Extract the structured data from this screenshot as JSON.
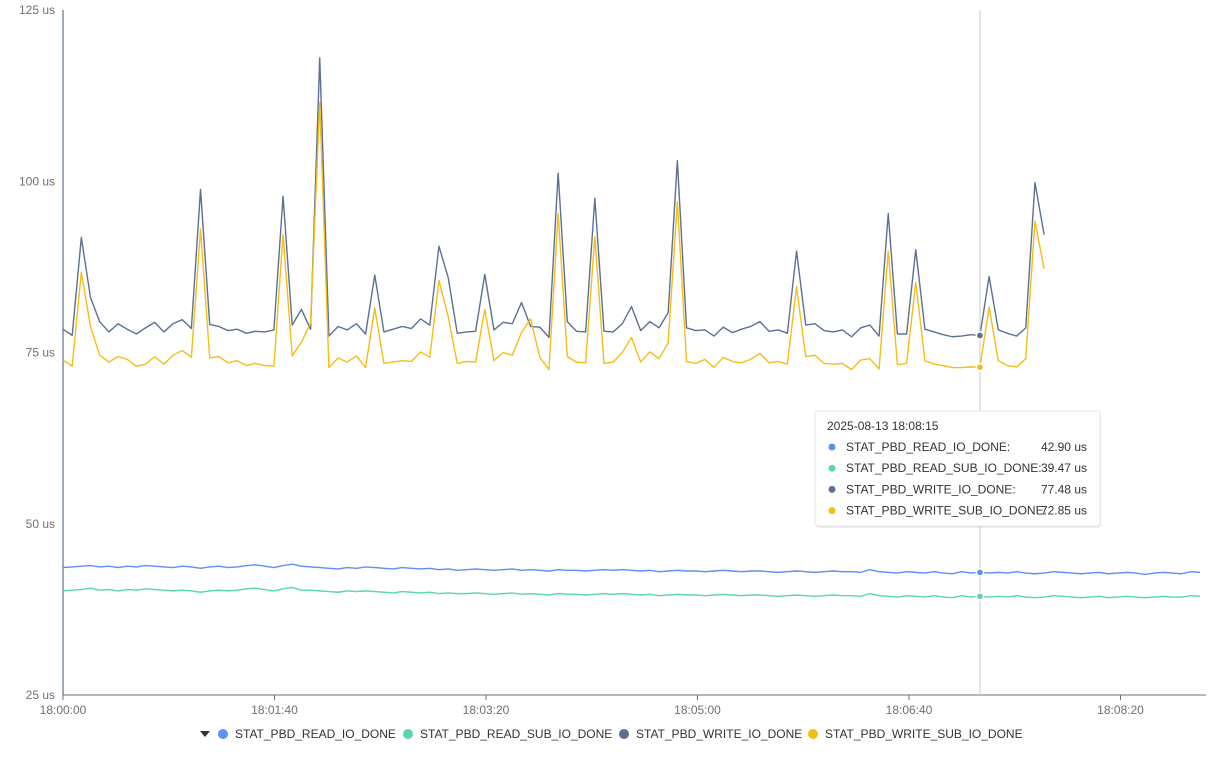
{
  "chart_data": {
    "type": "line",
    "x_ticks": [
      "18:00:00",
      "18:01:40",
      "18:03:20",
      "18:05:00",
      "18:06:40",
      "18:08:20"
    ],
    "y_ticks": [
      "25 us",
      "50 us",
      "75 us",
      "100 us",
      "125 us"
    ],
    "ylim": [
      25,
      125
    ],
    "grid": false,
    "legend_position": "bottom",
    "series": [
      {
        "name": "STAT_PBD_READ_IO_DONE",
        "color": "#5b8ff9",
        "values": [
          43.6,
          43.7,
          43.8,
          43.9,
          43.7,
          43.8,
          43.6,
          43.8,
          43.7,
          43.9,
          43.8,
          43.7,
          43.6,
          43.8,
          43.7,
          43.5,
          43.7,
          43.8,
          43.6,
          43.7,
          43.9,
          44.0,
          43.8,
          43.6,
          43.9,
          44.1,
          43.8,
          43.7,
          43.6,
          43.5,
          43.4,
          43.6,
          43.5,
          43.7,
          43.6,
          43.5,
          43.4,
          43.6,
          43.5,
          43.4,
          43.5,
          43.3,
          43.4,
          43.2,
          43.3,
          43.4,
          43.3,
          43.2,
          43.3,
          43.4,
          43.2,
          43.3,
          43.2,
          43.1,
          43.3,
          43.2,
          43.2,
          43.1,
          43.2,
          43.3,
          43.2,
          43.3,
          43.2,
          43.1,
          43.2,
          43.0,
          43.1,
          43.2,
          43.1,
          43.1,
          43.0,
          43.1,
          43.2,
          43.1,
          43.0,
          43.1,
          43.1,
          43.0,
          42.9,
          43.0,
          43.1,
          43.0,
          42.9,
          43.0,
          43.1,
          43.0,
          43.0,
          42.9,
          43.3,
          43.0,
          42.9,
          42.8,
          43.0,
          42.9,
          42.8,
          43.0,
          42.8,
          42.7,
          43.0,
          42.8,
          42.9,
          42.8,
          42.9,
          42.8,
          43.0,
          42.8,
          42.7,
          42.8,
          43.0,
          42.9,
          42.8,
          42.7,
          42.8,
          42.9,
          42.7,
          42.8,
          42.9,
          42.8,
          42.6,
          42.8,
          42.9,
          42.8,
          42.7,
          43.0,
          42.9
        ],
        "tooltip_value": "42.90 us"
      },
      {
        "name": "STAT_PBD_READ_SUB_IO_DONE",
        "color": "#5ad8a6",
        "values": [
          40.2,
          40.3,
          40.4,
          40.6,
          40.3,
          40.4,
          40.2,
          40.4,
          40.3,
          40.5,
          40.4,
          40.3,
          40.2,
          40.3,
          40.2,
          40.0,
          40.2,
          40.3,
          40.2,
          40.3,
          40.5,
          40.6,
          40.4,
          40.2,
          40.5,
          40.7,
          40.3,
          40.3,
          40.2,
          40.1,
          40.0,
          40.2,
          40.1,
          40.2,
          40.1,
          40.0,
          39.9,
          40.1,
          40.0,
          39.9,
          40.0,
          39.8,
          39.9,
          39.8,
          39.8,
          39.9,
          39.8,
          39.7,
          39.8,
          39.9,
          39.7,
          39.8,
          39.7,
          39.6,
          39.8,
          39.7,
          39.7,
          39.6,
          39.7,
          39.8,
          39.7,
          39.8,
          39.7,
          39.6,
          39.7,
          39.5,
          39.6,
          39.7,
          39.6,
          39.6,
          39.5,
          39.6,
          39.7,
          39.6,
          39.5,
          39.6,
          39.6,
          39.5,
          39.4,
          39.5,
          39.6,
          39.5,
          39.4,
          39.5,
          39.6,
          39.5,
          39.5,
          39.4,
          39.8,
          39.5,
          39.4,
          39.3,
          39.5,
          39.4,
          39.3,
          39.5,
          39.3,
          39.2,
          39.5,
          39.3,
          39.4,
          39.3,
          39.4,
          39.3,
          39.5,
          39.3,
          39.2,
          39.3,
          39.5,
          39.4,
          39.3,
          39.2,
          39.3,
          39.4,
          39.2,
          39.3,
          39.4,
          39.3,
          39.2,
          39.3,
          39.4,
          39.3,
          39.3,
          39.5,
          39.4
        ],
        "tooltip_value": "39.47 us"
      },
      {
        "name": "STAT_PBD_WRITE_IO_DONE",
        "color": "#5d7092",
        "values": [
          78.4,
          77.5,
          91.8,
          83.0,
          79.5,
          78.0,
          79.2,
          78.4,
          77.7,
          78.6,
          79.4,
          78.0,
          79.2,
          79.8,
          78.5,
          98.8,
          79.1,
          78.8,
          78.2,
          78.4,
          77.8,
          78.1,
          78.0,
          78.3,
          97.8,
          79.0,
          81.3,
          78.4,
          118.0,
          77.4,
          78.8,
          78.3,
          79.2,
          77.7,
          86.3,
          78.0,
          78.4,
          78.8,
          78.5,
          79.9,
          79.0,
          90.5,
          86.0,
          77.8,
          78.0,
          78.1,
          86.4,
          78.3,
          79.4,
          79.2,
          82.3,
          78.8,
          78.7,
          77.2,
          101.2,
          79.5,
          78.1,
          78.0,
          97.5,
          78.1,
          78.0,
          79.2,
          81.7,
          78.2,
          79.5,
          78.6,
          80.8,
          103.0,
          78.6,
          78.2,
          78.3,
          77.4,
          78.7,
          77.9,
          78.4,
          78.8,
          79.5,
          78.1,
          78.3,
          77.8,
          89.8,
          79.0,
          79.2,
          78.2,
          78.0,
          78.3,
          77.3,
          78.6,
          79.0,
          77.4,
          95.3,
          77.7,
          77.7,
          90.0,
          78.4,
          78.0,
          77.6,
          77.3,
          77.4,
          77.6,
          77.48,
          86.1,
          78.3,
          77.8,
          77.4,
          78.6,
          99.8,
          92.2
        ],
        "tooltip_value": "77.48 us"
      },
      {
        "name": "STAT_PBD_WRITE_SUB_IO_DONE",
        "color": "#f6bd16",
        "values": [
          73.9,
          73.0,
          86.7,
          78.8,
          74.6,
          73.6,
          74.4,
          74.0,
          73.0,
          73.3,
          74.4,
          73.3,
          74.6,
          75.3,
          74.3,
          93.0,
          74.2,
          74.4,
          73.5,
          73.8,
          73.1,
          73.4,
          73.1,
          73.0,
          92.2,
          74.5,
          76.5,
          79.3,
          111.5,
          72.8,
          74.2,
          73.6,
          74.5,
          72.8,
          81.5,
          73.4,
          73.6,
          73.8,
          73.7,
          75.1,
          74.3,
          85.5,
          80.3,
          73.4,
          73.7,
          73.6,
          81.3,
          73.8,
          75.0,
          74.6,
          77.9,
          79.9,
          74.3,
          72.5,
          95.3,
          74.4,
          73.6,
          73.5,
          91.9,
          73.4,
          73.6,
          75.0,
          77.2,
          73.6,
          75.1,
          74.1,
          76.4,
          97.0,
          73.7,
          73.4,
          74.0,
          72.8,
          74.3,
          73.7,
          73.5,
          74.0,
          74.9,
          73.5,
          73.7,
          73.3,
          84.6,
          74.4,
          74.6,
          73.4,
          73.3,
          73.4,
          72.5,
          73.9,
          74.1,
          72.6,
          89.8,
          73.2,
          73.4,
          85.2,
          73.8,
          73.3,
          73.1,
          72.8,
          72.8,
          72.9,
          72.85,
          81.6,
          73.8,
          73.1,
          72.9,
          74.1,
          94.2,
          87.2
        ],
        "tooltip_value": "72.85 us"
      }
    ],
    "tooltip": {
      "title": "2025-08-13 18:08:15"
    }
  }
}
